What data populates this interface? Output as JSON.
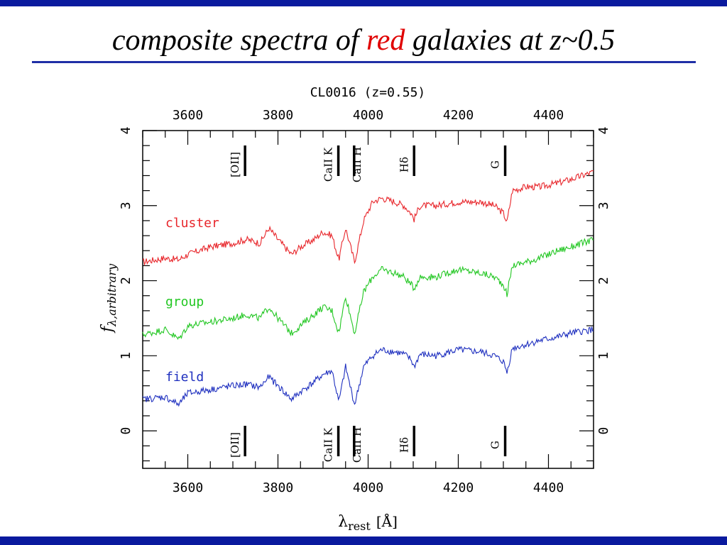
{
  "slide": {
    "title_pre": "composite spectra of ",
    "title_highlight": "red",
    "title_post": " galaxies at z~0.5",
    "highlight_color": "#e00000",
    "bar_color": "#0a1a9e"
  },
  "chart_data": {
    "type": "line",
    "title": "CL0016 (z=0.55)",
    "xlabel": "λrest [Å]",
    "xlabel_main": "λ",
    "xlabel_sub": "rest",
    "xlabel_unit": "[Å]",
    "ylabel": "fλ,arbitrary",
    "ylabel_main": "f",
    "ylabel_sub": "λ,arbitrary",
    "xlim": [
      3500,
      4500
    ],
    "ylim": [
      -0.5,
      4.0
    ],
    "x_ticks": [
      3600,
      3800,
      4000,
      4200,
      4400
    ],
    "y_ticks": [
      0,
      1,
      2,
      3,
      4
    ],
    "grid": false,
    "lines": [
      {
        "label": "[OII]",
        "x": 3727
      },
      {
        "label": "CaII K",
        "x": 3934
      },
      {
        "label": "CaII H",
        "x": 3969
      },
      {
        "label": "Hδ",
        "x": 4102
      },
      {
        "label": "G",
        "x": 4304
      }
    ],
    "series": [
      {
        "name": "cluster",
        "color": "#e8262b",
        "x": [
          3500,
          3550,
          3580,
          3600,
          3650,
          3700,
          3730,
          3760,
          3780,
          3800,
          3830,
          3850,
          3880,
          3900,
          3920,
          3935,
          3950,
          3970,
          3990,
          4010,
          4030,
          4060,
          4080,
          4095,
          4102,
          4115,
          4150,
          4200,
          4250,
          4280,
          4300,
          4308,
          4320,
          4350,
          4380,
          4420,
          4450,
          4500
        ],
        "values": [
          2.25,
          2.3,
          2.28,
          2.35,
          2.45,
          2.5,
          2.55,
          2.5,
          2.7,
          2.55,
          2.35,
          2.45,
          2.55,
          2.65,
          2.6,
          2.28,
          2.7,
          2.25,
          2.8,
          3.05,
          3.1,
          3.05,
          3.0,
          2.9,
          2.82,
          3.0,
          3.0,
          3.05,
          3.05,
          3.0,
          2.9,
          2.78,
          3.2,
          3.25,
          3.25,
          3.3,
          3.35,
          3.45
        ]
      },
      {
        "name": "group",
        "color": "#22c722",
        "x": [
          3500,
          3550,
          3580,
          3600,
          3650,
          3700,
          3730,
          3760,
          3780,
          3800,
          3830,
          3850,
          3880,
          3900,
          3920,
          3935,
          3950,
          3970,
          3990,
          4010,
          4030,
          4060,
          4080,
          4095,
          4102,
          4115,
          4150,
          4200,
          4250,
          4280,
          4300,
          4308,
          4320,
          4350,
          4380,
          4420,
          4450,
          4500
        ],
        "values": [
          1.28,
          1.35,
          1.22,
          1.4,
          1.45,
          1.5,
          1.55,
          1.5,
          1.65,
          1.5,
          1.3,
          1.4,
          1.55,
          1.65,
          1.6,
          1.3,
          1.8,
          1.3,
          1.85,
          2.05,
          2.15,
          2.1,
          2.05,
          1.95,
          1.9,
          2.05,
          2.05,
          2.15,
          2.1,
          2.05,
          1.95,
          1.82,
          2.2,
          2.25,
          2.3,
          2.4,
          2.45,
          2.55
        ]
      },
      {
        "name": "field",
        "color": "#1e2fbf",
        "x": [
          3500,
          3550,
          3580,
          3600,
          3650,
          3700,
          3730,
          3760,
          3780,
          3800,
          3830,
          3850,
          3880,
          3900,
          3920,
          3935,
          3950,
          3970,
          3990,
          4010,
          4030,
          4060,
          4080,
          4095,
          4102,
          4115,
          4150,
          4200,
          4250,
          4280,
          4300,
          4308,
          4320,
          4350,
          4380,
          4420,
          4450,
          4500
        ],
        "values": [
          0.42,
          0.45,
          0.35,
          0.5,
          0.55,
          0.6,
          0.62,
          0.58,
          0.72,
          0.6,
          0.42,
          0.52,
          0.65,
          0.75,
          0.8,
          0.38,
          0.85,
          0.35,
          0.85,
          1.0,
          1.08,
          1.05,
          1.02,
          0.95,
          0.85,
          1.02,
          1.0,
          1.08,
          1.05,
          1.0,
          0.92,
          0.78,
          1.1,
          1.15,
          1.2,
          1.25,
          1.3,
          1.35
        ]
      }
    ]
  }
}
